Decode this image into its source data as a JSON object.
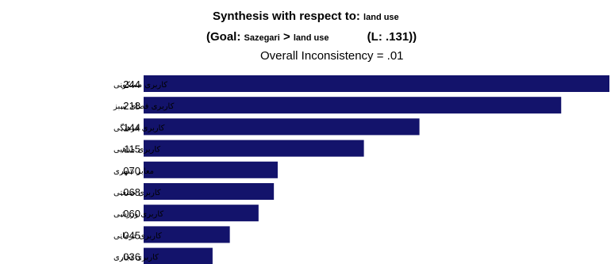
{
  "header": {
    "synthesis_prefix": "Synthesis with respect to:",
    "synthesis_node": "land use",
    "goal_prefix": "(Goal:",
    "goal_name": "Sazegari",
    "goal_arrow": ">",
    "goal_node": "land use",
    "local_weight": "(L: .131))",
    "inconsistency": "Overall Inconsistency = .01"
  },
  "chart_data": {
    "type": "bar",
    "orientation": "horizontal",
    "categories": [
      "کاربری مسکونی",
      "کاربری فضای سبز",
      "کاربری فرهنگی",
      "کاربری مذهبی",
      "معابر شهری",
      "کاربری صنعتی",
      "کاربری ورزشی",
      "کاربری درمانی",
      "کاربری تجاری"
    ],
    "values": [
      0.244,
      0.218,
      0.144,
      0.115,
      0.07,
      0.068,
      0.06,
      0.045,
      0.036
    ],
    "value_labels": [
      ".244",
      ".218",
      ".144",
      ".115",
      ".070",
      ".068",
      ".060",
      ".045",
      ".036"
    ],
    "bar_color": "#13136b",
    "xlim": [
      0,
      0.244
    ]
  }
}
